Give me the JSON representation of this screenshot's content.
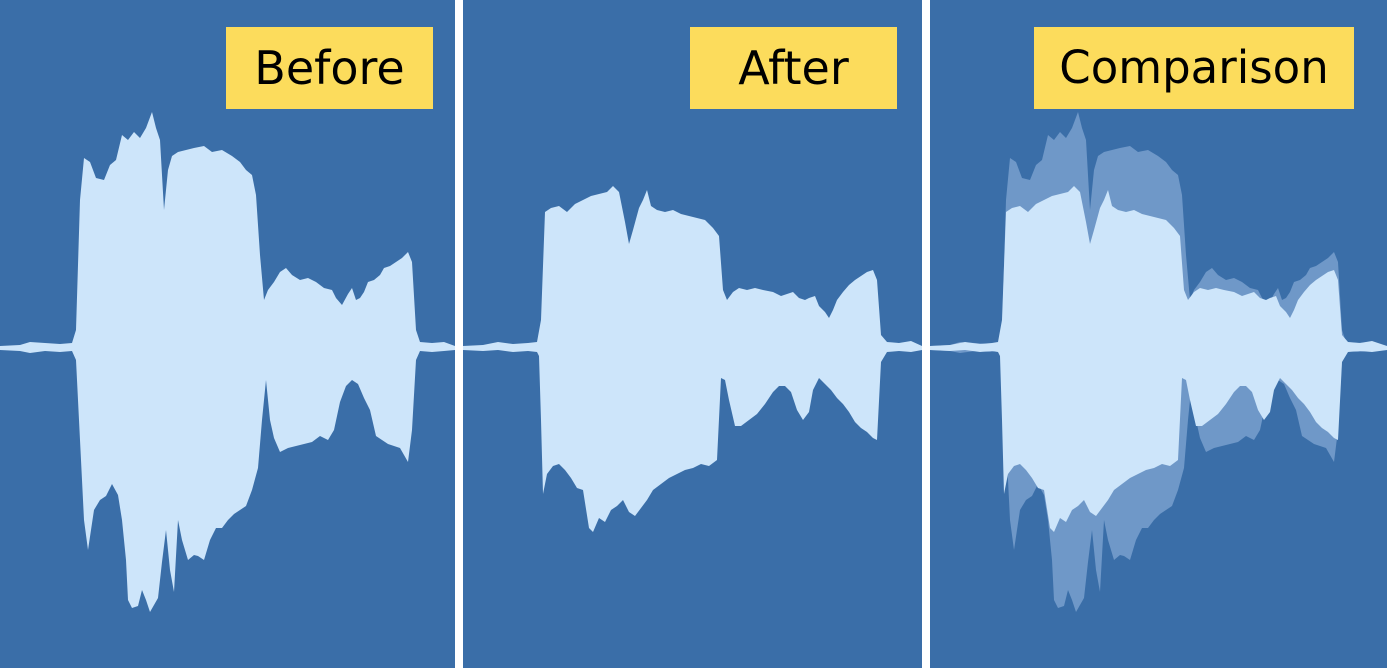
{
  "panels": {
    "before": {
      "label": "Before"
    },
    "after": {
      "label": "After"
    },
    "comparison": {
      "label": "Comparison"
    }
  },
  "colors": {
    "background": "#3a6ea8",
    "waveform": "#cde5fa",
    "waveform_overlay_before": "#6f98c8",
    "label_background": "#fcdc5c",
    "divider": "#ffffff"
  }
}
